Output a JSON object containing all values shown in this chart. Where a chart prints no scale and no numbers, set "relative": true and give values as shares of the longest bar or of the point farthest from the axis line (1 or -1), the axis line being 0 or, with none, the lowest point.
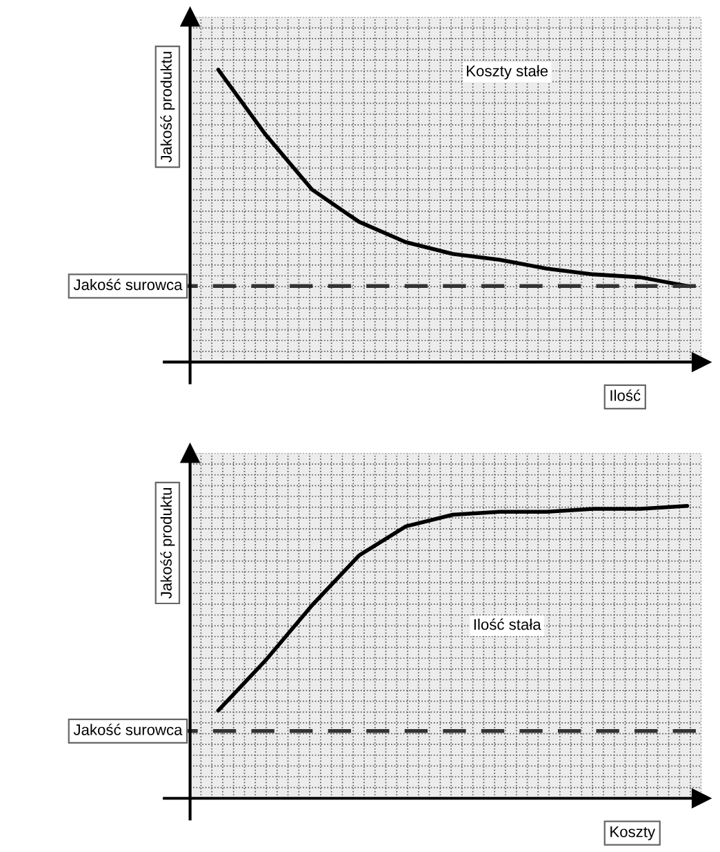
{
  "chart_data": [
    {
      "type": "line",
      "relative": true,
      "ylabel": "Jakość produktu",
      "xlabel": "Ilość",
      "annotations": [
        "Koszty stałe"
      ],
      "categories": [
        null,
        null,
        null,
        null,
        null,
        null,
        null,
        null,
        null,
        null,
        null
      ],
      "series": [
        {
          "color": "#000000",
          "values": [
            1,
            0.78,
            0.59,
            0.48,
            0.41,
            0.37,
            0.35,
            0.32,
            0.3,
            0.29,
            0.26
          ]
        }
      ],
      "ref_lines": [
        {
          "axis": "y",
          "value": 0.26,
          "label": "Jakość surowca",
          "color": "#333333",
          "line_style": "dashed"
        }
      ],
      "grid": true,
      "tick_labels": false,
      "marker": "none",
      "line_style": "solid"
    },
    {
      "type": "line",
      "relative": true,
      "ylabel": "Jakość produktu",
      "xlabel": "Koszty",
      "annotations": [
        "Ilość stała"
      ],
      "categories": [
        null,
        null,
        null,
        null,
        null,
        null,
        null,
        null,
        null,
        null,
        null
      ],
      "series": [
        {
          "color": "#000000",
          "values": [
            0.3,
            0.47,
            0.66,
            0.83,
            0.93,
            0.97,
            0.98,
            0.98,
            0.99,
            0.99,
            1
          ]
        }
      ],
      "ref_lines": [
        {
          "axis": "y",
          "value": 0.23,
          "label": "Jakość surowca",
          "color": "#333333",
          "line_style": "dashed"
        }
      ],
      "grid": true,
      "tick_labels": false,
      "marker": "none",
      "line_style": "solid"
    }
  ]
}
